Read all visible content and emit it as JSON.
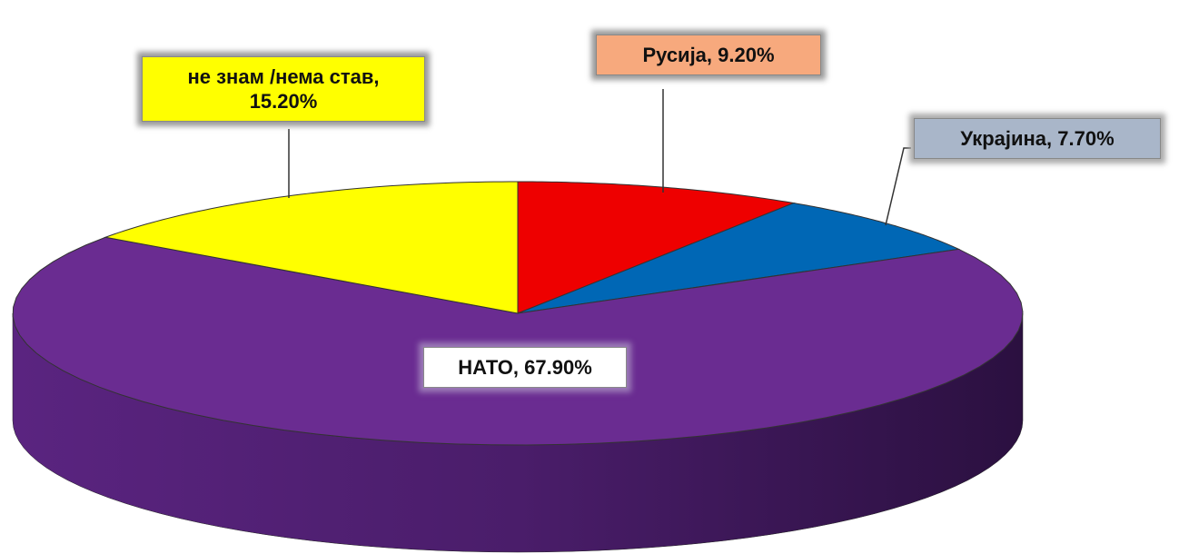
{
  "chart_data": {
    "type": "pie3d",
    "values": [
      9.2,
      7.7,
      67.9,
      15.2
    ],
    "value_labels": [
      "Русија, 9.20%",
      "Украјина, 7.70%",
      "НАТО, 67.90%",
      "не знам /нема став, 15.20%"
    ],
    "colors": [
      "#ee0000",
      "#0067b5",
      "#6a2c91",
      "#ffff00"
    ],
    "start_angle": 0
  }
}
